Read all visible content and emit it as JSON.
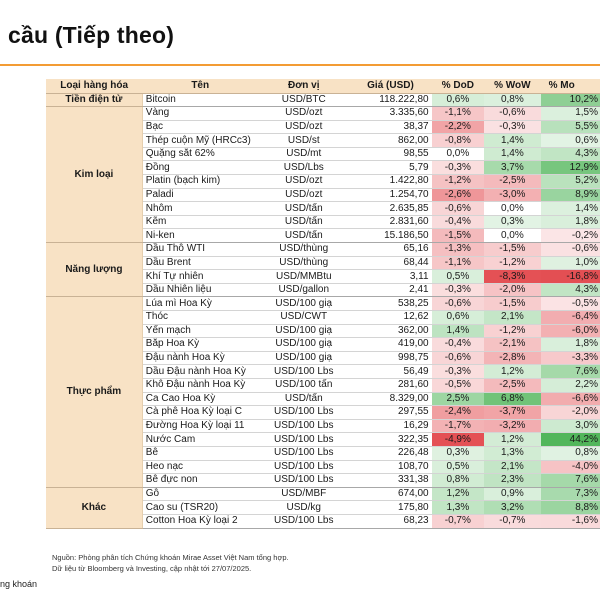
{
  "title": "cầu (Tiếp theo)",
  "colors": {
    "accent": "#f39c34",
    "header_bg": "#f8e2c5",
    "green": "#3fae49",
    "red": "#e0393e"
  },
  "table": {
    "headers": [
      "Loại hàng hóa",
      "Tên",
      "Đơn vị",
      "Giá (USD)",
      "% DoD",
      "% WoW",
      "% Mo"
    ],
    "groups": [
      {
        "name": "Tiền điện tử",
        "rows": [
          {
            "name": "Bitcoin",
            "unit": "USD/BTC",
            "price": "118.222,80",
            "dod": "0,6%",
            "wow": "0,8%",
            "mom": "10,2%"
          }
        ]
      },
      {
        "name": "Kim loại",
        "rows": [
          {
            "name": "Vàng",
            "unit": "USD/ozt",
            "price": "3.335,60",
            "dod": "-1,1%",
            "wow": "-0,6%",
            "mom": "1,5%"
          },
          {
            "name": "Bạc",
            "unit": "USD/ozt",
            "price": "38,37",
            "dod": "-2,2%",
            "wow": "-0,3%",
            "mom": "5,5%"
          },
          {
            "name": "Thép cuộn Mỹ (HRCc3)",
            "unit": "USD/st",
            "price": "862,00",
            "dod": "-0,8%",
            "wow": "1,4%",
            "mom": "0,6%"
          },
          {
            "name": "Quặng sắt 62%",
            "unit": "USD/mt",
            "price": "98,55",
            "dod": "0,0%",
            "wow": "1,4%",
            "mom": "4,3%"
          },
          {
            "name": "Đồng",
            "unit": "USD/Lbs",
            "price": "5,79",
            "dod": "-0,3%",
            "wow": "3,7%",
            "mom": "12,9%"
          },
          {
            "name": "Platin (bạch kim)",
            "unit": "USD/ozt",
            "price": "1.422,80",
            "dod": "-1,2%",
            "wow": "-2,5%",
            "mom": "5,2%"
          },
          {
            "name": "Paladi",
            "unit": "USD/ozt",
            "price": "1.254,70",
            "dod": "-2,6%",
            "wow": "-3,0%",
            "mom": "8,9%"
          },
          {
            "name": "Nhôm",
            "unit": "USD/tấn",
            "price": "2.635,85",
            "dod": "-0,6%",
            "wow": "0,0%",
            "mom": "1,4%"
          },
          {
            "name": "Kẽm",
            "unit": "USD/tấn",
            "price": "2.831,60",
            "dod": "-0,4%",
            "wow": "0,3%",
            "mom": "1,8%"
          },
          {
            "name": "Ni-ken",
            "unit": "USD/tấn",
            "price": "15.186,50",
            "dod": "-1,5%",
            "wow": "0,0%",
            "mom": "-0,2%"
          }
        ]
      },
      {
        "name": "Năng lượng",
        "rows": [
          {
            "name": "Dầu Thô WTI",
            "unit": "USD/thùng",
            "price": "65,16",
            "dod": "-1,3%",
            "wow": "-1,5%",
            "mom": "-0,6%"
          },
          {
            "name": "Dầu Brent",
            "unit": "USD/thùng",
            "price": "68,44",
            "dod": "-1,1%",
            "wow": "-1,2%",
            "mom": "1,0%"
          },
          {
            "name": "Khí Tự nhiên",
            "unit": "USD/MMBtu",
            "price": "3,11",
            "dod": "0,5%",
            "wow": "-8,3%",
            "mom": "-16,8%"
          },
          {
            "name": "Dầu Nhiên liệu",
            "unit": "USD/gallon",
            "price": "2,41",
            "dod": "-0,3%",
            "wow": "-2,0%",
            "mom": "4,3%"
          }
        ]
      },
      {
        "name": "Thực phẩm",
        "rows": [
          {
            "name": "Lúa mì Hoa Kỳ",
            "unit": "USD/100 giạ",
            "price": "538,25",
            "dod": "-0,6%",
            "wow": "-1,5%",
            "mom": "-0,5%"
          },
          {
            "name": "Thóc",
            "unit": "USD/CWT",
            "price": "12,62",
            "dod": "0,6%",
            "wow": "2,1%",
            "mom": "-6,4%"
          },
          {
            "name": "Yến mạch",
            "unit": "USD/100 giạ",
            "price": "362,00",
            "dod": "1,4%",
            "wow": "-1,2%",
            "mom": "-6,0%"
          },
          {
            "name": "Bắp Hoa Kỳ",
            "unit": "USD/100 giạ",
            "price": "419,00",
            "dod": "-0,4%",
            "wow": "-2,1%",
            "mom": "1,8%"
          },
          {
            "name": "Đậu nành Hoa Kỳ",
            "unit": "USD/100 giạ",
            "price": "998,75",
            "dod": "-0,6%",
            "wow": "-2,8%",
            "mom": "-3,3%"
          },
          {
            "name": "Dầu Đậu nành Hoa Kỳ",
            "unit": "USD/100 Lbs",
            "price": "56,49",
            "dod": "-0,3%",
            "wow": "1,2%",
            "mom": "7,6%"
          },
          {
            "name": "Khô Đậu nành Hoa Kỳ",
            "unit": "USD/100 tấn",
            "price": "281,60",
            "dod": "-0,5%",
            "wow": "-2,5%",
            "mom": "2,2%"
          },
          {
            "name": "Ca Cao Hoa Kỳ",
            "unit": "USD/tấn",
            "price": "8.329,00",
            "dod": "2,5%",
            "wow": "6,8%",
            "mom": "-6,6%"
          },
          {
            "name": "Cà phê Hoa Kỳ loại C",
            "unit": "USD/100 Lbs",
            "price": "297,55",
            "dod": "-2,4%",
            "wow": "-3,7%",
            "mom": "-2,0%"
          },
          {
            "name": "Đường Hoa Kỳ loại 11",
            "unit": "USD/100 Lbs",
            "price": "16,29",
            "dod": "-1,7%",
            "wow": "-3,2%",
            "mom": "3,0%"
          },
          {
            "name": "Nước Cam",
            "unit": "USD/100 Lbs",
            "price": "322,35",
            "dod": "-4,9%",
            "wow": "1,2%",
            "mom": "44,2%"
          },
          {
            "name": "Bê",
            "unit": "USD/100 Lbs",
            "price": "226,48",
            "dod": "0,3%",
            "wow": "1,3%",
            "mom": "0,8%"
          },
          {
            "name": "Heo nạc",
            "unit": "USD/100 Lbs",
            "price": "108,70",
            "dod": "0,5%",
            "wow": "2,1%",
            "mom": "-4,0%"
          },
          {
            "name": "Bê đực non",
            "unit": "USD/100 Lbs",
            "price": "331,38",
            "dod": "0,8%",
            "wow": "2,3%",
            "mom": "7,6%"
          }
        ]
      },
      {
        "name": "Khác",
        "rows": [
          {
            "name": "Gỗ",
            "unit": "USD/MBF",
            "price": "674,00",
            "dod": "1,2%",
            "wow": "0,9%",
            "mom": "7,3%"
          },
          {
            "name": "Cao su (TSR20)",
            "unit": "USD/kg",
            "price": "175,80",
            "dod": "1,3%",
            "wow": "3,2%",
            "mom": "8,8%"
          },
          {
            "name": "Cotton Hoa Kỳ loại 2",
            "unit": "USD/100 Lbs",
            "price": "68,23",
            "dod": "-0,7%",
            "wow": "-0,7%",
            "mom": "-1,6%"
          }
        ]
      }
    ]
  },
  "footnotes": [
    "Nguồn: Phòng phân tích Chứng khoán Mirae Asset Việt Nam tổng hợp.",
    "Dữ liệu từ Bloomberg và Investing, cập nhật tới 27/07/2025."
  ],
  "footer_brand": "ng khoán"
}
